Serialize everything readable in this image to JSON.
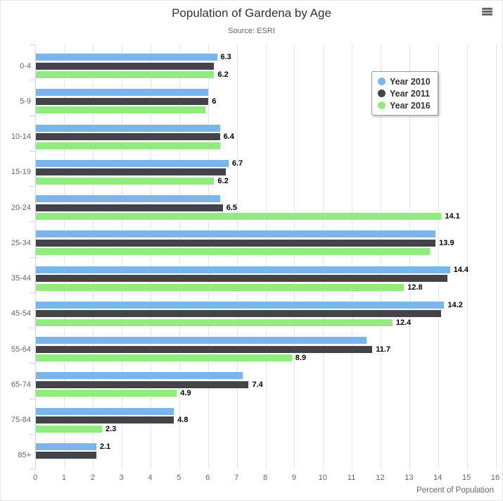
{
  "header": {
    "title": "Population of Gardena by Age",
    "subtitle": "Source: ESRI"
  },
  "icons": {
    "export_menu": "hamburger-menu-icon"
  },
  "colors": {
    "grid": "#e6e6e6",
    "axis_line": "#ccd6eb",
    "tick": "#ccd6eb",
    "axis_text": "#666666",
    "title_text": "#333333",
    "data_label": "#000000",
    "legend_border": "#999999",
    "series_2010": "#7cb5ec",
    "series_2011": "#434348",
    "series_2016": "#90ed7d"
  },
  "chart_data": {
    "type": "bar",
    "orientation": "horizontal",
    "title": "Population of Gardena by Age",
    "subtitle": "Source: ESRI",
    "xlabel": "Percent of Population",
    "xlim": [
      0,
      16
    ],
    "x_tick_labels": [
      "0",
      "1",
      "2",
      "3",
      "4",
      "5",
      "6",
      "7",
      "8",
      "9",
      "10",
      "11",
      "12",
      "13",
      "14",
      "15",
      "16"
    ],
    "grid": true,
    "legend_position": "top-right",
    "categories": [
      "0-4",
      "5-9",
      "10-14",
      "15-19",
      "20-24",
      "25-34",
      "35-44",
      "45-54",
      "55-64",
      "65-74",
      "75-84",
      "85+"
    ],
    "series": [
      {
        "name": "Year 2010",
        "color": "#7cb5ec",
        "values": [
          6.3,
          6.0,
          6.4,
          6.7,
          6.4,
          13.9,
          14.4,
          14.2,
          11.5,
          7.2,
          4.8,
          2.1
        ],
        "visible_labels": [
          "6.3",
          null,
          null,
          "6.7",
          null,
          null,
          "14.4",
          "14.2",
          null,
          null,
          null,
          "2.1"
        ]
      },
      {
        "name": "Year 2011",
        "color": "#434348",
        "values": [
          6.2,
          6.0,
          6.4,
          6.6,
          6.5,
          13.9,
          14.3,
          14.1,
          11.7,
          7.4,
          4.8,
          2.1
        ],
        "visible_labels": [
          null,
          "6",
          "6.4",
          null,
          "6.5",
          "13.9",
          null,
          null,
          "11.7",
          "7.4",
          "4.8",
          null
        ]
      },
      {
        "name": "Year 2016",
        "color": "#90ed7d",
        "values": [
          6.2,
          5.9,
          6.4,
          6.2,
          14.1,
          13.7,
          12.8,
          12.4,
          8.9,
          4.9,
          2.3,
          0
        ],
        "visible_labels": [
          "6.2",
          null,
          null,
          "6.2",
          "14.1",
          null,
          "12.8",
          "12.4",
          "8.9",
          "4.9",
          "2.3",
          null
        ]
      }
    ]
  }
}
